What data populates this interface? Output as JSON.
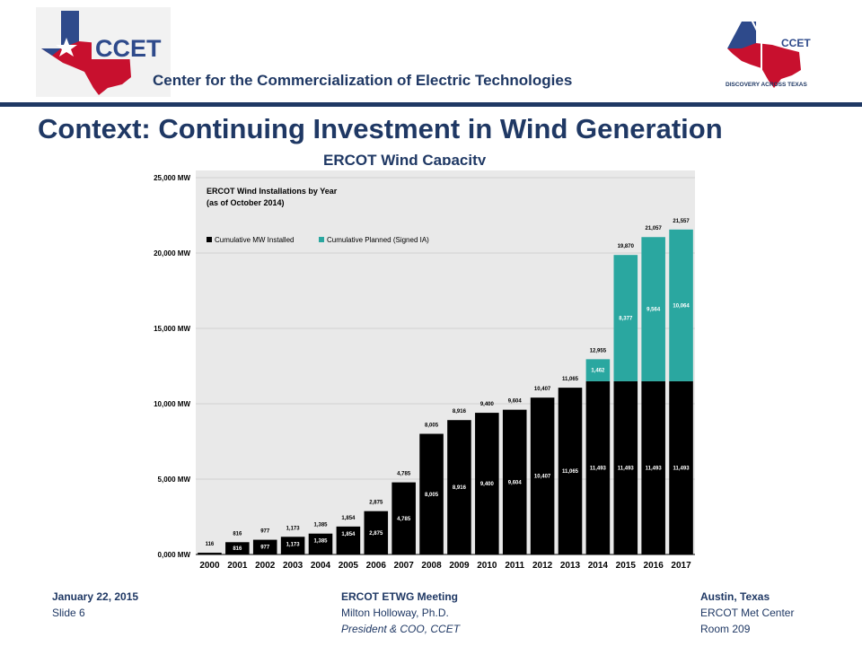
{
  "header": {
    "logo_text": "CCET",
    "center_name": "Center for the Commercialization of Electric Technologies",
    "right_logo_text": "CCET",
    "right_logo_tagline": "DISCOVERY ACROSS TEXAS"
  },
  "slide": {
    "title": "Context: Continuing Investment in Wind Generation",
    "subtitle": "ERCOT Wind Capacity"
  },
  "colors": {
    "navy": "#1f3864",
    "installed": "#000000",
    "planned": "#2aa7a0",
    "chart_bg": "#e9e9e9",
    "texas_blue": "#2e4a8b",
    "texas_red": "#c8102e"
  },
  "chart_data": {
    "type": "bar",
    "stacked": true,
    "title": "ERCOT Wind Installations by Year",
    "subtitle": "(as of  October 2014)",
    "categories": [
      "2000",
      "2001",
      "2002",
      "2003",
      "2004",
      "2005",
      "2006",
      "2007",
      "2008",
      "2009",
      "2010",
      "2011",
      "2012",
      "2013",
      "2014",
      "2015",
      "2016",
      "2017"
    ],
    "series": [
      {
        "name": "Cumulative MW Installed",
        "color": "#000000",
        "values": [
          116,
          816,
          977,
          1173,
          1385,
          1854,
          2875,
          4785,
          8005,
          8916,
          9400,
          9604,
          10407,
          11065,
          11493,
          11493,
          11493,
          11493
        ],
        "labels": [
          "",
          "816",
          "977",
          "1,173",
          "1,385",
          "1,854",
          "2,875",
          "4,785",
          "8,005",
          "8,916",
          "9,400",
          "9,604",
          "10,407",
          "11,065",
          "11,493",
          "11,493",
          "11,493",
          "11,493"
        ]
      },
      {
        "name": "Cumulative Planned (Signed IA)",
        "color": "#2aa7a0",
        "values": [
          0,
          0,
          0,
          0,
          0,
          0,
          0,
          0,
          0,
          0,
          0,
          0,
          0,
          0,
          1462,
          8377,
          9564,
          10064
        ],
        "labels": [
          "",
          "",
          "",
          "",
          "",
          "",
          "",
          "",
          "",
          "",
          "",
          "",
          "",
          "",
          "1,462",
          "8,377",
          "9,564",
          "10,064"
        ]
      }
    ],
    "totals": [
      "116",
      "816",
      "977",
      "1,173",
      "1,385",
      "1,854",
      "2,875",
      "4,785",
      "8,005",
      "8,916",
      "9,400",
      "9,604",
      "10,407",
      "11,065",
      "12,955",
      "19,870",
      "21,057",
      "21,557"
    ],
    "yticks": [
      0,
      5000,
      10000,
      15000,
      20000,
      25000
    ],
    "ytick_labels": [
      "0,000  MW",
      "5,000  MW",
      "10,000  MW",
      "15,000  MW",
      "20,000  MW",
      "25,000  MW"
    ],
    "ylim": [
      0,
      25000
    ],
    "grid": true,
    "legend": "top-left"
  },
  "footer": {
    "date": "January 22, 2015",
    "slide": "Slide 6",
    "meeting": "ERCOT ETWG Meeting",
    "presenter": "Milton Holloway, Ph.D.",
    "role": "President & COO, CCET",
    "city": "Austin, Texas",
    "venue": "ERCOT Met Center",
    "room": "Room 209"
  }
}
